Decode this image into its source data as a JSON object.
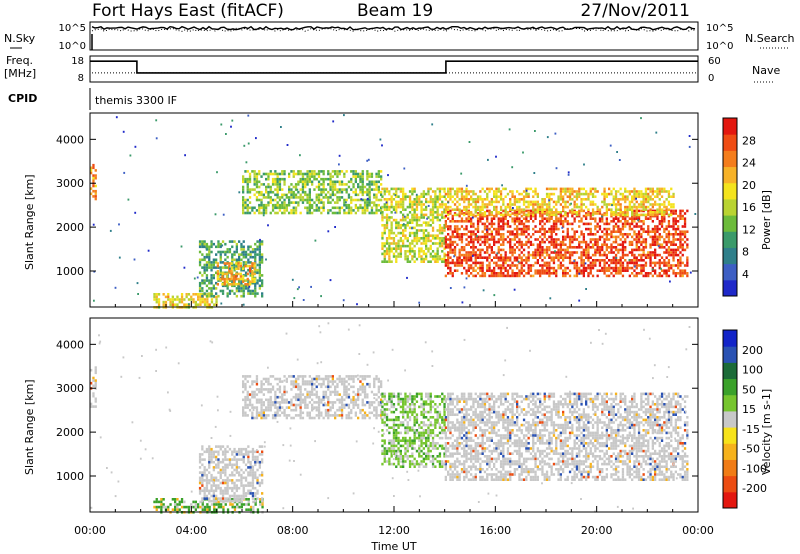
{
  "header": {
    "station": "Fort Hays East (fitACF)",
    "beam": "Beam 19",
    "date": "27/Nov/2011"
  },
  "strips": {
    "nsky": {
      "left_label": "N.Sky",
      "right_label": "N.Search",
      "left_ticks": [
        "10^5",
        "10^0"
      ],
      "right_ticks": [
        "10^5",
        "10^0"
      ],
      "series": [
        {
          "name": "N.Sky",
          "level": 0.78,
          "line": "solid"
        },
        {
          "name": "N.Search",
          "level": 0.72,
          "line": "dotted"
        }
      ]
    },
    "freq": {
      "left_label_1": "Freq.",
      "left_label_2": "[MHz]",
      "left_ticks": [
        "18",
        "8"
      ],
      "right_label": "Nave",
      "right_ticks": [
        "60",
        "0"
      ],
      "freq_steps": [
        {
          "t0": 0.0,
          "t1": 1.85,
          "level": 0.8
        },
        {
          "t0": 1.85,
          "t1": 14.05,
          "level": 0.35
        },
        {
          "t0": 14.05,
          "t1": 24.0,
          "level": 0.8
        }
      ],
      "nave_level": 0.35
    },
    "cpid": {
      "label": "CPID",
      "program": "themis 3300 IF"
    }
  },
  "chart_data": [
    {
      "type": "heatmap",
      "panel": "power",
      "ylabel": "Slant Range [km]",
      "xlabel": "",
      "ylim": [
        180,
        4600
      ],
      "yticks": [
        1000,
        2000,
        3000,
        4000
      ],
      "xlim": [
        0,
        24
      ],
      "colorbar": {
        "label": "Power [dB]",
        "ticks": [
          "4",
          "8",
          "12",
          "16",
          "20",
          "24",
          "28"
        ],
        "range": [
          0,
          30
        ]
      },
      "echo_regions": [
        {
          "name": "near range early",
          "t0": 2.5,
          "t1": 5.0,
          "r0": 200,
          "r1": 500,
          "value": 18
        },
        {
          "name": "early patch",
          "t0": 4.3,
          "t1": 6.8,
          "r0": 400,
          "r1": 1700,
          "value": 10
        },
        {
          "name": "early core",
          "t0": 5.0,
          "t1": 6.5,
          "r0": 700,
          "r1": 1200,
          "value": 21
        },
        {
          "name": "mid band",
          "t0": 6.0,
          "t1": 11.5,
          "r0": 2300,
          "r1": 3300,
          "value": 13
        },
        {
          "name": "decline",
          "t0": 11.5,
          "t1": 14.0,
          "r0": 1200,
          "r1": 2900,
          "value": 16
        },
        {
          "name": "late strong",
          "t0": 14.0,
          "t1": 23.6,
          "r0": 900,
          "r1": 2400,
          "value": 27
        },
        {
          "name": "late upper",
          "t0": 14.0,
          "t1": 23.0,
          "r0": 2300,
          "r1": 2900,
          "value": 19
        },
        {
          "name": "start",
          "t0": 0.0,
          "t1": 0.25,
          "r0": 2600,
          "r1": 3500,
          "value": 22
        }
      ]
    },
    {
      "type": "heatmap",
      "panel": "velocity",
      "ylabel": "Slant Range [km]",
      "xlabel": "Time UT",
      "ylim": [
        180,
        4600
      ],
      "yticks": [
        1000,
        2000,
        3000,
        4000
      ],
      "xlim": [
        0,
        24
      ],
      "xticks": [
        "00:00",
        "04:00",
        "08:00",
        "12:00",
        "16:00",
        "20:00",
        "00:00"
      ],
      "colorbar": {
        "label": "Velocity [m s-1]",
        "ticks": [
          "200",
          "100",
          "50",
          "15",
          "-15",
          "-50",
          "-100",
          "-200"
        ]
      },
      "echo_regions": [
        {
          "name": "near range",
          "t0": 2.5,
          "t1": 6.8,
          "r0": 180,
          "r1": 500,
          "value": 60
        },
        {
          "name": "early patch",
          "t0": 4.3,
          "t1": 6.8,
          "r0": 400,
          "r1": 1700,
          "value": 0
        },
        {
          "name": "mid band",
          "t0": 6.0,
          "t1": 11.5,
          "r0": 2300,
          "r1": 3300,
          "value": 0
        },
        {
          "name": "decline",
          "t0": 11.5,
          "t1": 14.0,
          "r0": 1200,
          "r1": 2900,
          "value": 30
        },
        {
          "name": "late",
          "t0": 14.0,
          "t1": 23.6,
          "r0": 900,
          "r1": 2900,
          "value": 0
        },
        {
          "name": "start",
          "t0": 0.0,
          "t1": 0.25,
          "r0": 2600,
          "r1": 3500,
          "value": 0
        }
      ]
    }
  ]
}
